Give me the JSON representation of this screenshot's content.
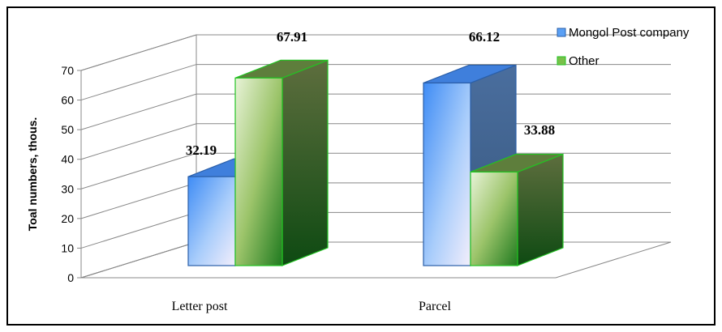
{
  "chart_data": {
    "type": "bar",
    "categories": [
      "Letter post",
      "Parcel"
    ],
    "series": [
      {
        "name": "Mongol Post company",
        "values": [
          32.19,
          66.12
        ],
        "color": "#4a8ef0"
      },
      {
        "name": "Other",
        "values": [
          67.91,
          33.88
        ],
        "color": "#3fae3f"
      }
    ],
    "data_labels": [
      "32.19",
      "66.12",
      "67.91",
      "33.88"
    ],
    "ylabel": "Toal numbers, thous.",
    "xlabel": "",
    "ylim": [
      0,
      70
    ],
    "yticks": [
      "0",
      "10",
      "20",
      "30",
      "40",
      "50",
      "60",
      "70"
    ],
    "grid": true,
    "legend_position": "top-right",
    "style": "3d-clustered-column"
  }
}
